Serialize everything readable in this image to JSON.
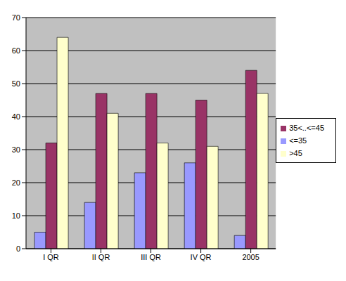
{
  "chart_data": {
    "type": "bar",
    "categories": [
      "I QR",
      "II QR",
      "III QR",
      "IV QR",
      "2005"
    ],
    "series": [
      {
        "name": "<=35",
        "color": "#9999FF",
        "values": [
          5,
          14,
          23,
          26,
          4
        ]
      },
      {
        "name": "35<..<=45",
        "color": "#993366",
        "values": [
          32,
          47,
          47,
          45,
          54
        ]
      },
      {
        "name": ">45",
        "color": "#FFFFCC",
        "values": [
          64,
          41,
          32,
          31,
          47
        ]
      }
    ],
    "ylim": [
      0,
      70
    ],
    "yticks": [
      0,
      10,
      20,
      30,
      40,
      50,
      60,
      70
    ],
    "grid": true,
    "legend": "right"
  }
}
